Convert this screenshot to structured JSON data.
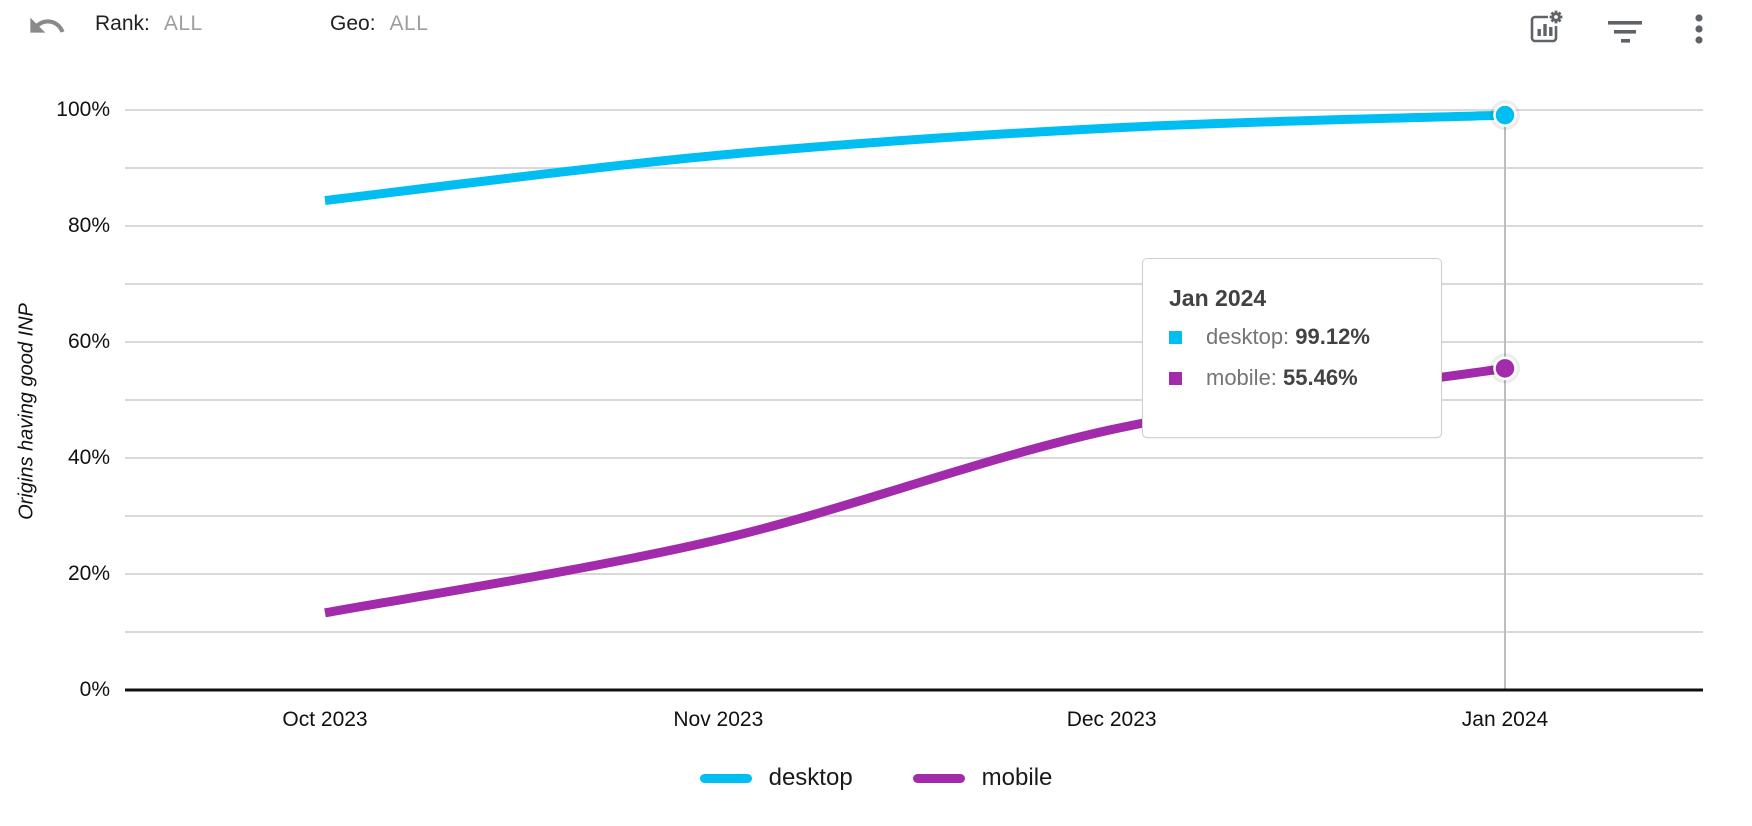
{
  "toolbar": {
    "filters": [
      {
        "id": "rank",
        "label": "Rank:",
        "value": "ALL"
      },
      {
        "id": "geo",
        "label": "Geo:",
        "value": "ALL"
      }
    ],
    "icons": {
      "undo": "undo-icon",
      "chart_settings": "chart-settings-icon",
      "filter": "filter-list-icon",
      "more": "more-vert-icon"
    }
  },
  "chart_data": {
    "type": "line",
    "title": "",
    "xlabel": "",
    "ylabel": "Origins having good INP",
    "categories": [
      "Oct 2023",
      "Nov 2023",
      "Dec 2023",
      "Jan 2024"
    ],
    "y_ticks": [
      {
        "label": "100%",
        "pct": 100
      },
      {
        "label": "80%",
        "pct": 80
      },
      {
        "label": "60%",
        "pct": 60
      },
      {
        "label": "40%",
        "pct": 40
      },
      {
        "label": "20%",
        "pct": 20
      },
      {
        "label": "0%",
        "pct": 0
      }
    ],
    "ylim": [
      0,
      100
    ],
    "grid": true,
    "gridline_step_pct": 10,
    "legend_position": "bottom",
    "series": [
      {
        "name": "desktop",
        "color": "#00bdf2",
        "values": [
          84.4,
          92.2,
          96.9,
          99.12
        ]
      },
      {
        "name": "mobile",
        "color": "#a12bab",
        "values": [
          13.3,
          25.9,
          44.9,
          55.46
        ]
      }
    ],
    "highlight": {
      "category": "Jan 2024",
      "index": 3
    }
  },
  "tooltip": {
    "title": "Jan 2024",
    "items": [
      {
        "label": "desktop",
        "value": "99.12%",
        "color": "#00bdf2"
      },
      {
        "label": "mobile",
        "value": "55.46%",
        "color": "#a12bab"
      }
    ]
  },
  "legend": [
    {
      "label": "desktop",
      "color": "#00bdf2"
    },
    {
      "label": "mobile",
      "color": "#a12bab"
    }
  ],
  "colors": {
    "grid": "#d9d9d9",
    "axis": "#111111",
    "crosshair": "#bdbdbd",
    "icon": "#5f6368"
  }
}
